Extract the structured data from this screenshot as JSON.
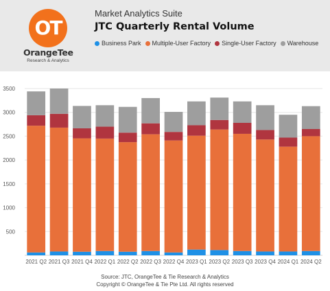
{
  "header": {
    "logo": {
      "glyph": "OT",
      "name": "OrangeTee",
      "tagline": "Research & Analytics"
    },
    "suite_name": "Market Analytics Suite",
    "title": "JTC Quarterly Rental Volume"
  },
  "colors": {
    "header_bg": "#e9e9e9",
    "brand_orange": "#f2711c"
  },
  "chart_data": {
    "type": "bar",
    "stacked": true,
    "title": "JTC Quarterly Rental Volume",
    "xlabel": "",
    "ylabel": "",
    "ylim": [
      0,
      3500
    ],
    "yticks": [
      500,
      1000,
      1500,
      2000,
      2500,
      3000,
      3500
    ],
    "grid": true,
    "legend": "top",
    "categories": [
      "2021 Q2",
      "2021 Q3",
      "2021 Q4",
      "2022 Q1",
      "2022 Q2",
      "2022 Q3",
      "2022 Q4",
      "2023 Q1",
      "2023 Q2",
      "2023 Q3",
      "2023 Q4",
      "2024 Q1",
      "2024 Q2"
    ],
    "series": [
      {
        "name": "Business Park",
        "color": "#1e90e6",
        "values": [
          60,
          80,
          75,
          90,
          75,
          90,
          60,
          120,
          110,
          90,
          80,
          80,
          90
        ]
      },
      {
        "name": "Multiple-User Factory",
        "color": "#e8703a",
        "values": [
          2660,
          2600,
          2380,
          2360,
          2300,
          2450,
          2350,
          2390,
          2530,
          2460,
          2350,
          2200,
          2410
        ]
      },
      {
        "name": "Single-User Factory",
        "color": "#b0353f",
        "values": [
          220,
          290,
          210,
          250,
          200,
          230,
          180,
          220,
          200,
          230,
          200,
          190,
          150
        ]
      },
      {
        "name": "Warehouse",
        "color": "#9e9e9e",
        "values": [
          500,
          530,
          470,
          450,
          540,
          530,
          420,
          500,
          470,
          450,
          520,
          480,
          480
        ]
      }
    ]
  },
  "footer": {
    "source": "Source: JTC, OrangeTee & Tie Research & Analytics",
    "copyright": "Copyright © OrangeTee & Tie Pte Ltd. All rights reserved"
  }
}
